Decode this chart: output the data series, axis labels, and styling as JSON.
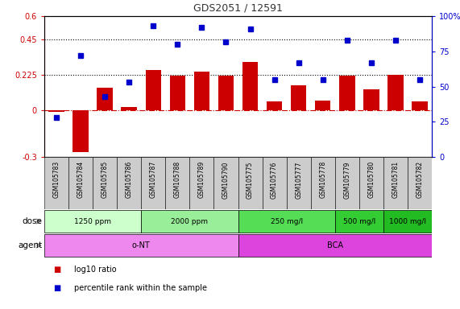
{
  "title": "GDS2051 / 12591",
  "samples": [
    "GSM105783",
    "GSM105784",
    "GSM105785",
    "GSM105786",
    "GSM105787",
    "GSM105788",
    "GSM105789",
    "GSM105790",
    "GSM105775",
    "GSM105776",
    "GSM105777",
    "GSM105778",
    "GSM105779",
    "GSM105780",
    "GSM105781",
    "GSM105782"
  ],
  "log10_ratio": [
    -0.01,
    -0.27,
    0.14,
    0.02,
    0.255,
    0.22,
    0.245,
    0.22,
    0.305,
    0.055,
    0.16,
    0.06,
    0.22,
    0.13,
    0.225,
    0.055
  ],
  "percentile": [
    28,
    72,
    43,
    53,
    93,
    80,
    92,
    82,
    91,
    55,
    67,
    55,
    83,
    67,
    83,
    55
  ],
  "bar_color": "#cc0000",
  "dot_color": "#0000cc",
  "ylim_left": [
    -0.3,
    0.6
  ],
  "ylim_right": [
    0,
    100
  ],
  "yticks_left": [
    -0.3,
    0,
    0.225,
    0.45,
    0.6
  ],
  "ytick_labels_left": [
    "-0.3",
    "0",
    "0.225",
    "0.45",
    "0.6"
  ],
  "yticks_right": [
    0,
    25,
    50,
    75,
    100
  ],
  "ytick_labels_right": [
    "0",
    "25",
    "50",
    "75",
    "100%"
  ],
  "hlines": [
    0.225,
    0.45
  ],
  "dose_groups": [
    {
      "label": "1250 ppm",
      "start": 0,
      "end": 3,
      "color": "#ccffcc"
    },
    {
      "label": "2000 ppm",
      "start": 4,
      "end": 7,
      "color": "#99ee99"
    },
    {
      "label": "250 mg/l",
      "start": 8,
      "end": 11,
      "color": "#55dd55"
    },
    {
      "label": "500 mg/l",
      "start": 12,
      "end": 13,
      "color": "#33cc33"
    },
    {
      "label": "1000 mg/l",
      "start": 14,
      "end": 15,
      "color": "#22bb22"
    }
  ],
  "agent_groups": [
    {
      "label": "o-NT",
      "start": 0,
      "end": 7,
      "color": "#ee88ee"
    },
    {
      "label": "BCA",
      "start": 8,
      "end": 15,
      "color": "#dd44dd"
    }
  ],
  "legend_items": [
    {
      "color": "#cc0000",
      "label": "log10 ratio"
    },
    {
      "color": "#0000cc",
      "label": "percentile rank within the sample"
    }
  ],
  "row_label_dose": "dose",
  "row_label_agent": "agent",
  "bg_color": "#ffffff",
  "plot_bg": "#ffffff",
  "dotted_line_color": "#000000",
  "zero_line_color": "#cc0000",
  "sample_bg": "#cccccc"
}
